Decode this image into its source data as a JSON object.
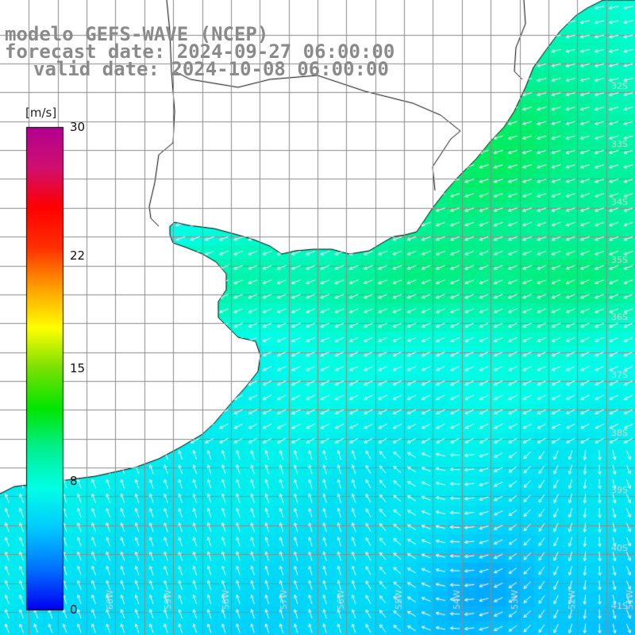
{
  "title": {
    "line1": "modelo GEFS-WAVE (NCEP)",
    "line2": "forecast date: 2024-09-27 06:00:00",
    "line3": "valid date: 2024-10-08 06:00:00"
  },
  "legend": {
    "unit": "[m/s]",
    "min": 0,
    "max": 30,
    "ticks": [
      {
        "label": "30",
        "value": 30
      },
      {
        "label": "22",
        "value": 22
      },
      {
        "label": "15",
        "value": 15
      },
      {
        "label": "8",
        "value": 8
      },
      {
        "label": "0",
        "value": 0
      }
    ],
    "colors": [
      "#0000f0",
      "#0070ff",
      "#00c8ff",
      "#00ffe6",
      "#00f090",
      "#00e600",
      "#7ae000",
      "#ffff00",
      "#ffa000",
      "#ff3000",
      "#ff0000",
      "#d01070",
      "#b00090"
    ]
  },
  "lat_labels": [
    {
      "label": "32S",
      "lat": -32
    },
    {
      "label": "33S",
      "lat": -33
    },
    {
      "label": "34S",
      "lat": -34
    },
    {
      "label": "35S",
      "lat": -35
    },
    {
      "label": "36S",
      "lat": -36
    },
    {
      "label": "37S",
      "lat": -37
    },
    {
      "label": "38S",
      "lat": -38
    },
    {
      "label": "39S",
      "lat": -39
    },
    {
      "label": "40S",
      "lat": -40
    },
    {
      "label": "41S",
      "lat": -41
    }
  ],
  "lon_labels": [
    {
      "label": "61W",
      "lon": -61
    },
    {
      "label": "60W",
      "lon": -60
    },
    {
      "label": "59W",
      "lon": -59
    },
    {
      "label": "58W",
      "lon": -58
    },
    {
      "label": "57W",
      "lon": -57
    },
    {
      "label": "56W",
      "lon": -56
    },
    {
      "label": "55W",
      "lon": -55
    },
    {
      "label": "54W",
      "lon": -54
    },
    {
      "label": "53W",
      "lon": -53
    },
    {
      "label": "52W",
      "lon": -52
    },
    {
      "label": "51W",
      "lon": -51
    }
  ],
  "map": {
    "lon_range": [
      -62,
      -51
    ],
    "lat_range": [
      -41.4,
      -30.4
    ],
    "land_color": "#ffffff",
    "grid_color": "#8c8c8c",
    "coast_color": "#000000",
    "arrow_color": "#ffffff",
    "label_color": "#d6d6d6"
  }
}
